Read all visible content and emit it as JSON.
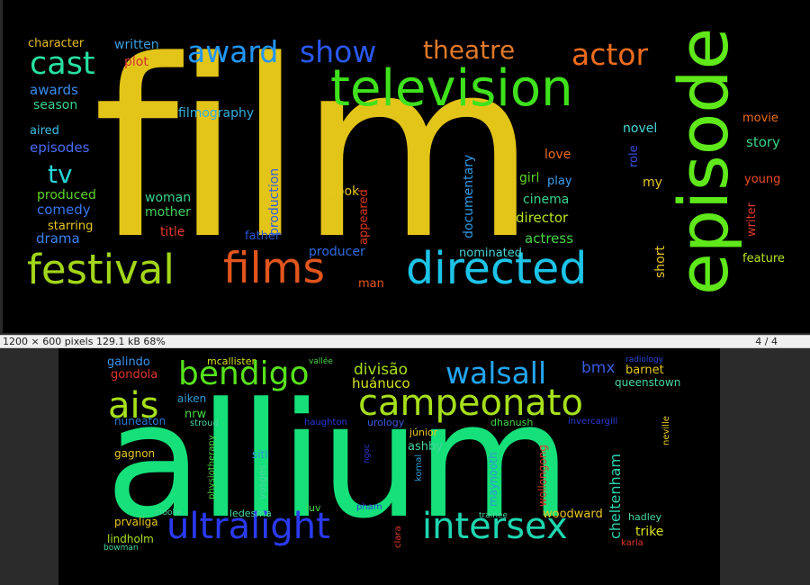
{
  "status_bar": {
    "image_info": "1200 × 600 pixels   129.1 kB   68%",
    "page_counter": "4 / 4"
  },
  "colors": {
    "viewer_background": "#2a2a2a",
    "canvas_background": "#000000",
    "status_bar_background": "#efefef"
  },
  "wordcloud_1": {
    "words": [
      {
        "id": "film",
        "text": "film",
        "color": "#e3c419"
      },
      {
        "id": "television",
        "text": "television",
        "color": "#3fe11c"
      },
      {
        "id": "episode",
        "text": "episode",
        "color": "#5fe81a"
      },
      {
        "id": "directed",
        "text": "directed",
        "color": "#1cc4e8"
      },
      {
        "id": "festival",
        "text": "festival",
        "color": "#a2d619"
      },
      {
        "id": "films",
        "text": "films",
        "color": "#e2551d"
      },
      {
        "id": "awardshow-award",
        "text": "award",
        "color": "#2196f3"
      },
      {
        "id": "awardshow-show",
        "text": "show",
        "color": "#2a58f0"
      },
      {
        "id": "theatre",
        "text": "theatre",
        "color": "#e0792a"
      },
      {
        "id": "actor",
        "text": "actor",
        "color": "#ee6c1e"
      },
      {
        "id": "cast",
        "text": "cast",
        "color": "#26e0a2"
      },
      {
        "id": "tv",
        "text": "tv",
        "color": "#26d5d5"
      },
      {
        "id": "character",
        "text": "character",
        "color": "#e6bd1f"
      },
      {
        "id": "written",
        "text": "written",
        "color": "#3a9ed8"
      },
      {
        "id": "plot",
        "text": "plot",
        "color": "#d63232"
      },
      {
        "id": "awards",
        "text": "awards",
        "color": "#3b8cf0"
      },
      {
        "id": "season",
        "text": "season",
        "color": "#38d48c"
      },
      {
        "id": "aired",
        "text": "aired",
        "color": "#3bc1e5"
      },
      {
        "id": "episodes",
        "text": "episodes",
        "color": "#4a6cf0"
      },
      {
        "id": "produced",
        "text": "produced",
        "color": "#5dd424"
      },
      {
        "id": "comedy",
        "text": "comedy",
        "color": "#3a76f0"
      },
      {
        "id": "starring",
        "text": "starring",
        "color": "#e6c61f"
      },
      {
        "id": "drama",
        "text": "drama",
        "color": "#3b82f0"
      },
      {
        "id": "filmography",
        "text": "filmography",
        "color": "#35b0e0"
      },
      {
        "id": "woman",
        "text": "woman",
        "color": "#37d48f"
      },
      {
        "id": "mother",
        "text": "mother",
        "color": "#3fd25a"
      },
      {
        "id": "title",
        "text": "title",
        "color": "#e0372c"
      },
      {
        "id": "father",
        "text": "father",
        "color": "#2a57d6"
      },
      {
        "id": "production",
        "text": "production",
        "color": "#2e5fe0"
      },
      {
        "id": "book",
        "text": "book",
        "color": "#e6c61f"
      },
      {
        "id": "appeared",
        "text": "appeared",
        "color": "#d8361e"
      },
      {
        "id": "producer",
        "text": "producer",
        "color": "#2f6ae0"
      },
      {
        "id": "man",
        "text": "man",
        "color": "#e2551d"
      },
      {
        "id": "documentary",
        "text": "documentary",
        "color": "#2f9be6"
      },
      {
        "id": "nominated",
        "text": "nominated",
        "color": "#47d6d6"
      },
      {
        "id": "love",
        "text": "love",
        "color": "#ee6c1e"
      },
      {
        "id": "girl",
        "text": "girl",
        "color": "#5fd41c"
      },
      {
        "id": "play",
        "text": "play",
        "color": "#3b9ef0"
      },
      {
        "id": "cinema",
        "text": "cinema",
        "color": "#38d48c"
      },
      {
        "id": "director",
        "text": "director",
        "color": "#b7e61f"
      },
      {
        "id": "actress",
        "text": "actress",
        "color": "#47d647"
      },
      {
        "id": "novel",
        "text": "novel",
        "color": "#46d6d6"
      },
      {
        "id": "role",
        "text": "role",
        "color": "#3a50e0"
      },
      {
        "id": "my",
        "text": "my",
        "color": "#e6c61f"
      },
      {
        "id": "short",
        "text": "short",
        "color": "#e6c61f"
      },
      {
        "id": "movie",
        "text": "movie",
        "color": "#ee6c1e"
      },
      {
        "id": "story",
        "text": "story",
        "color": "#38d48c"
      },
      {
        "id": "young",
        "text": "young",
        "color": "#ee4a2a"
      },
      {
        "id": "writer",
        "text": "writer",
        "color": "#e0372c"
      },
      {
        "id": "feature",
        "text": "feature",
        "color": "#b7e61f"
      }
    ]
  },
  "wordcloud_2": {
    "words": [
      {
        "id": "allium",
        "text": "allium",
        "color": "#16e07a"
      },
      {
        "id": "campeonato",
        "text": "campeonato",
        "color": "#a6e01a"
      },
      {
        "id": "bendigo",
        "text": "bendigo",
        "color": "#57e21a"
      },
      {
        "id": "walsall",
        "text": "walsall",
        "color": "#23a6f0"
      },
      {
        "id": "ais",
        "text": "ais",
        "color": "#a6e01a"
      },
      {
        "id": "ultralight",
        "text": "ultralight",
        "color": "#2a3af0"
      },
      {
        "id": "intersex",
        "text": "intersex",
        "color": "#1ed6b0"
      },
      {
        "id": "galindo",
        "text": "galindo",
        "color": "#3a96f0"
      },
      {
        "id": "mcallister",
        "text": "mcallister",
        "color": "#d6e01a"
      },
      {
        "id": "vallee",
        "text": "vallée",
        "color": "#46d646"
      },
      {
        "id": "radiology",
        "text": "radiology",
        "color": "#2a4ad6"
      },
      {
        "id": "gondola",
        "text": "gondola",
        "color": "#e0372c"
      },
      {
        "id": "divisao",
        "text": "divisão",
        "color": "#a6e01a"
      },
      {
        "id": "huanuco",
        "text": "huánuco",
        "color": "#d6e01a"
      },
      {
        "id": "bmx",
        "text": "bmx",
        "color": "#3a5ae0"
      },
      {
        "id": "barnet",
        "text": "barnet",
        "color": "#e6c61f"
      },
      {
        "id": "queenstown",
        "text": "queenstown",
        "color": "#46d6a0"
      },
      {
        "id": "aiken",
        "text": "aiken",
        "color": "#2a9ad6"
      },
      {
        "id": "nrw",
        "text": "nrw",
        "color": "#46d646"
      },
      {
        "id": "stroud",
        "text": "stroud",
        "color": "#46d6a0"
      },
      {
        "id": "nuneaton",
        "text": "nuneaton",
        "color": "#2a7ad6"
      },
      {
        "id": "haughton",
        "text": "haughton",
        "color": "#2a3ae0"
      },
      {
        "id": "urology",
        "text": "urology",
        "color": "#3a5ae0"
      },
      {
        "id": "dhanush",
        "text": "dhanush",
        "color": "#46d646"
      },
      {
        "id": "invercargill",
        "text": "invercargill",
        "color": "#2a3ad6"
      },
      {
        "id": "neville",
        "text": "neville",
        "color": "#e6c61f"
      },
      {
        "id": "junior",
        "text": "júnior",
        "color": "#e6c61f"
      },
      {
        "id": "ashby",
        "text": "ashby",
        "color": "#46d6a0"
      },
      {
        "id": "gagnon",
        "text": "gagnon",
        "color": "#e6c61f"
      },
      {
        "id": "physiotherapy",
        "text": "physiotherapy",
        "color": "#46d646"
      },
      {
        "id": "siti",
        "text": "siti",
        "color": "#2a9ad6"
      },
      {
        "id": "vosges",
        "text": "vosges",
        "color": "#46d6a0"
      },
      {
        "id": "ngoc",
        "text": "ngoc",
        "color": "#2a3ad6"
      },
      {
        "id": "komal",
        "text": "komal",
        "color": "#2a9ad6"
      },
      {
        "id": "maynooth",
        "text": "maynooth",
        "color": "#2a9ad6"
      },
      {
        "id": "wollongong",
        "text": "wollongong",
        "color": "#e0372c"
      },
      {
        "id": "cheltenham",
        "text": "cheltenham",
        "color": "#2ad6b0"
      },
      {
        "id": "crooke",
        "text": "crooke",
        "color": "#46d6a0"
      },
      {
        "id": "ledesma",
        "text": "ledesma",
        "color": "#46d6a0"
      },
      {
        "id": "luv",
        "text": "luv",
        "color": "#46d646"
      },
      {
        "id": "pham",
        "text": "pham",
        "color": "#2a3ad6"
      },
      {
        "id": "trainee",
        "text": "trainee",
        "color": "#46d6a0"
      },
      {
        "id": "woodward",
        "text": "woodward",
        "color": "#e6c61f"
      },
      {
        "id": "hadley",
        "text": "hadley",
        "color": "#46d6a0"
      },
      {
        "id": "prvaliga",
        "text": "prvaliga",
        "color": "#e6c61f"
      },
      {
        "id": "lindholm",
        "text": "lindholm",
        "color": "#a6e01a"
      },
      {
        "id": "bowman",
        "text": "bowman",
        "color": "#46d6a0"
      },
      {
        "id": "clara",
        "text": "clara",
        "color": "#e0372c"
      },
      {
        "id": "trike",
        "text": "trike",
        "color": "#d6e01a"
      },
      {
        "id": "karla",
        "text": "karla",
        "color": "#e0372c"
      }
    ]
  }
}
